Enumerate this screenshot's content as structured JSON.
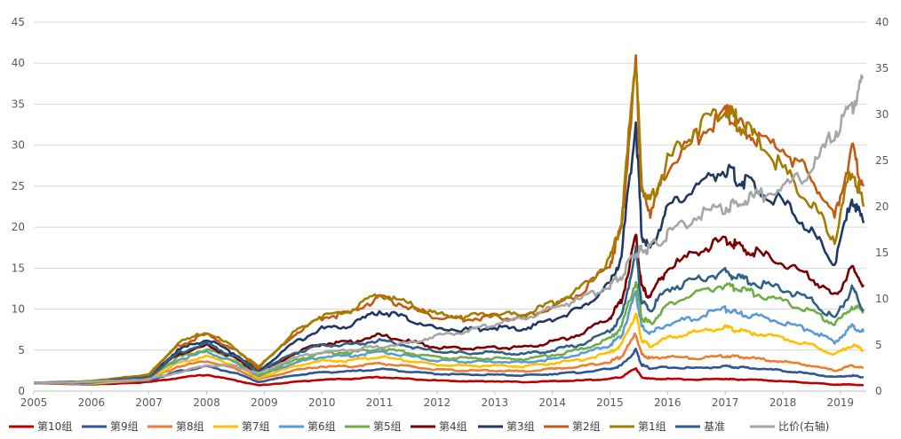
{
  "chart_data": {
    "type": "line",
    "title": "",
    "xlabel": "",
    "ylabel": "",
    "x_ticks": [
      "2005",
      "2006",
      "2007",
      "2008",
      "2009",
      "2010",
      "2011",
      "2012",
      "2013",
      "2014",
      "2015",
      "2016",
      "2017",
      "2018",
      "2019"
    ],
    "x_range": [
      2005.0,
      2019.45
    ],
    "y_left_ticks": [
      "0",
      "5",
      "10",
      "15",
      "20",
      "25",
      "30",
      "35",
      "40",
      "45"
    ],
    "y_left_range": [
      0,
      45
    ],
    "y_right_ticks": [
      "0",
      "5",
      "10",
      "15",
      "20",
      "25",
      "30",
      "35",
      "40"
    ],
    "y_right_range": [
      0,
      40
    ],
    "grid": true,
    "legend_position": "bottom",
    "x": [
      2005.0,
      2006.0,
      2007.0,
      2007.5,
      2008.0,
      2008.5,
      2008.9,
      2009.5,
      2010.0,
      2010.5,
      2011.0,
      2011.5,
      2012.0,
      2012.5,
      2013.0,
      2013.5,
      2014.0,
      2014.5,
      2015.0,
      2015.2,
      2015.45,
      2015.55,
      2015.7,
      2016.0,
      2016.5,
      2017.0,
      2017.2,
      2017.5,
      2018.0,
      2018.5,
      2018.9,
      2019.2,
      2019.4
    ],
    "series": [
      {
        "name": "第10组",
        "color": "#c00000",
        "axis": "left",
        "values": [
          1.0,
          0.8,
          1.1,
          1.6,
          2.0,
          1.3,
          0.7,
          1.1,
          1.4,
          1.5,
          1.7,
          1.5,
          1.3,
          1.2,
          1.2,
          1.1,
          1.2,
          1.3,
          1.5,
          1.7,
          2.8,
          1.7,
          1.5,
          1.5,
          1.4,
          1.5,
          1.4,
          1.4,
          1.2,
          1.0,
          0.8,
          0.8,
          0.7
        ]
      },
      {
        "name": "第9组",
        "color": "#2f5597",
        "axis": "left",
        "values": [
          1.0,
          0.85,
          1.3,
          2.4,
          3.0,
          2.2,
          1.1,
          1.9,
          2.3,
          2.4,
          2.7,
          2.4,
          2.1,
          2.0,
          2.0,
          1.9,
          2.1,
          2.3,
          2.7,
          3.1,
          5.0,
          3.2,
          2.8,
          2.9,
          2.8,
          3.0,
          2.9,
          2.8,
          2.5,
          2.1,
          1.7,
          1.9,
          1.7
        ]
      },
      {
        "name": "第8组",
        "color": "#ed7d31",
        "axis": "left",
        "values": [
          1.0,
          0.9,
          1.4,
          3.0,
          3.7,
          2.7,
          1.4,
          2.5,
          3.0,
          3.0,
          3.4,
          3.0,
          2.6,
          2.5,
          2.5,
          2.4,
          2.7,
          3.0,
          3.6,
          4.2,
          7.0,
          4.5,
          4.0,
          4.2,
          4.0,
          4.3,
          4.2,
          4.0,
          3.6,
          3.1,
          2.5,
          3.1,
          2.8
        ]
      },
      {
        "name": "第7组",
        "color": "#ffc000",
        "axis": "left",
        "values": [
          1.0,
          0.95,
          1.5,
          3.4,
          4.3,
          3.1,
          1.6,
          3.0,
          3.7,
          3.7,
          4.2,
          3.7,
          3.2,
          3.1,
          3.1,
          3.0,
          3.4,
          3.8,
          4.7,
          5.6,
          9.5,
          6.2,
          5.5,
          6.5,
          7.2,
          7.8,
          7.4,
          7.1,
          6.5,
          5.6,
          4.5,
          5.6,
          5.0
        ]
      },
      {
        "name": "第6组",
        "color": "#5b9bd5",
        "axis": "left",
        "values": [
          1.0,
          1.0,
          1.6,
          3.8,
          4.8,
          3.5,
          1.8,
          3.4,
          4.2,
          4.3,
          4.8,
          4.3,
          3.7,
          3.6,
          3.6,
          3.5,
          3.9,
          4.5,
          5.6,
          6.8,
          12.0,
          7.8,
          7.0,
          8.2,
          9.0,
          10.0,
          9.5,
          9.2,
          8.4,
          7.4,
          6.0,
          7.9,
          7.2
        ]
      },
      {
        "name": "第5组",
        "color": "#70ad47",
        "axis": "left",
        "values": [
          1.0,
          1.05,
          1.7,
          4.1,
          5.1,
          3.7,
          1.9,
          3.7,
          4.6,
          4.7,
          5.2,
          4.7,
          4.1,
          4.0,
          4.0,
          3.9,
          4.4,
          5.1,
          6.4,
          7.8,
          13.5,
          9.0,
          8.2,
          10.5,
          12.0,
          13.0,
          12.5,
          12.0,
          11.0,
          9.8,
          8.1,
          10.3,
          9.8
        ]
      },
      {
        "name": "第4组",
        "color": "#7b0000",
        "axis": "left",
        "values": [
          1.0,
          1.1,
          1.8,
          4.5,
          5.6,
          4.0,
          2.2,
          4.5,
          5.8,
          6.0,
          6.8,
          6.1,
          5.3,
          5.2,
          5.3,
          5.3,
          6.0,
          7.0,
          9.0,
          11.0,
          19.0,
          12.5,
          11.5,
          15.0,
          17.0,
          18.5,
          17.7,
          17.0,
          15.5,
          13.8,
          11.5,
          15.0,
          13.0
        ]
      },
      {
        "name": "第3组",
        "color": "#1f3864",
        "axis": "left",
        "values": [
          1.0,
          1.15,
          1.9,
          5.0,
          6.3,
          4.5,
          2.5,
          5.8,
          7.6,
          8.0,
          9.8,
          8.8,
          7.6,
          7.5,
          7.7,
          7.6,
          8.7,
          10.1,
          13.0,
          16.5,
          33.0,
          19.0,
          17.5,
          22.0,
          25.0,
          27.0,
          26.0,
          25.0,
          23.0,
          19.5,
          15.5,
          23.5,
          20.5
        ]
      },
      {
        "name": "第2组",
        "color": "#c55a11",
        "axis": "left",
        "values": [
          1.0,
          1.2,
          2.0,
          5.5,
          6.9,
          5.0,
          2.8,
          6.8,
          9.0,
          9.5,
          11.5,
          10.3,
          9.0,
          8.8,
          9.1,
          9.0,
          10.3,
          12.0,
          15.5,
          20.0,
          40.0,
          24.0,
          22.0,
          27.0,
          31.0,
          34.0,
          32.5,
          31.0,
          29.5,
          26.0,
          21.0,
          29.5,
          25.0
        ]
      },
      {
        "name": "第1组",
        "color": "#a67c00",
        "axis": "left",
        "values": [
          1.0,
          1.2,
          2.0,
          5.8,
          7.2,
          5.2,
          2.9,
          7.0,
          9.3,
          9.8,
          11.9,
          10.6,
          9.3,
          9.1,
          9.4,
          9.3,
          10.7,
          12.5,
          16.0,
          20.5,
          41.0,
          25.0,
          23.0,
          28.0,
          32.0,
          34.5,
          33.0,
          31.0,
          27.0,
          23.0,
          18.5,
          27.5,
          22.5
        ]
      },
      {
        "name": "基准",
        "color": "#2e6189",
        "axis": "left",
        "values": [
          1.0,
          1.1,
          1.7,
          4.6,
          5.8,
          4.2,
          2.3,
          4.6,
          5.6,
          5.6,
          6.2,
          5.5,
          4.8,
          4.6,
          4.7,
          4.5,
          5.0,
          5.7,
          7.3,
          9.0,
          17.0,
          10.8,
          9.9,
          12.5,
          13.5,
          14.5,
          13.8,
          13.2,
          12.5,
          11.0,
          8.8,
          12.5,
          10.0
        ]
      },
      {
        "name": "比价(右轴)",
        "color": "#a6a6a6",
        "axis": "right",
        "values": [
          0.9,
          1.0,
          1.3,
          2.0,
          2.8,
          2.7,
          1.9,
          3.6,
          4.2,
          4.5,
          4.8,
          5.2,
          6.0,
          6.5,
          7.3,
          7.9,
          9.0,
          10.0,
          11.5,
          12.5,
          15.0,
          15.2,
          15.5,
          17.0,
          19.0,
          20.0,
          20.3,
          21.0,
          22.0,
          24.0,
          28.0,
          31.0,
          34.0
        ]
      }
    ]
  }
}
